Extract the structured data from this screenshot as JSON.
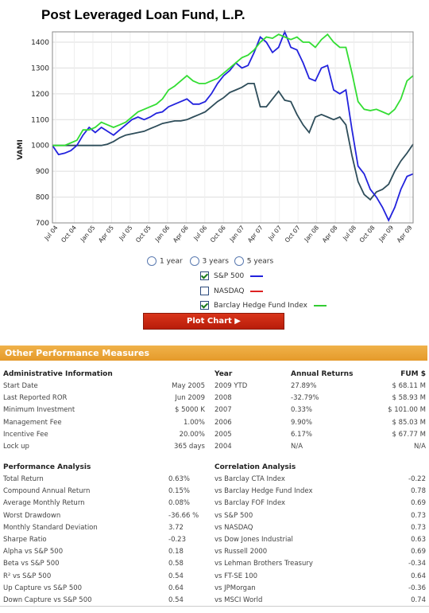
{
  "title": "Post Leveraged Loan Fund, L.P.",
  "chart_data": {
    "type": "line",
    "ylabel": "VAMI",
    "ylim": [
      700,
      1440
    ],
    "yticks": [
      700,
      800,
      900,
      1000,
      1100,
      1200,
      1300,
      1400
    ],
    "x_tick_labels": [
      "Jul 04",
      "Oct 04",
      "Jan 05",
      "Apr 05",
      "Jul 05",
      "Oct 05",
      "Jan 06",
      "Apr 06",
      "Jul 06",
      "Oct 06",
      "Jan 07",
      "Apr 07",
      "Jul 07",
      "Oct 07",
      "Jan 08",
      "Apr 08",
      "Jul 08",
      "Oct 08",
      "Jan 09",
      "Apr 09"
    ],
    "n_points": 60,
    "series": [
      {
        "name": "Fund",
        "color": "#2e4d5a",
        "values": [
          1000,
          1000,
          1000,
          1000,
          1000,
          1000,
          1000,
          1000,
          1000,
          1005,
          1015,
          1030,
          1040,
          1045,
          1050,
          1055,
          1065,
          1075,
          1085,
          1090,
          1095,
          1095,
          1100,
          1110,
          1120,
          1130,
          1150,
          1170,
          1185,
          1205,
          1215,
          1225,
          1240,
          1240,
          1150,
          1150,
          1180,
          1210,
          1175,
          1170,
          1120,
          1080,
          1050,
          1110,
          1120,
          1110,
          1100,
          1110,
          1080,
          960,
          860,
          810,
          790,
          820,
          830,
          850,
          900,
          940,
          970,
          1005
        ]
      },
      {
        "name": "S&P 500",
        "color": "#2222dd",
        "values": [
          1000,
          965,
          970,
          980,
          1000,
          1040,
          1070,
          1050,
          1070,
          1055,
          1040,
          1060,
          1080,
          1100,
          1110,
          1100,
          1110,
          1125,
          1130,
          1150,
          1160,
          1170,
          1180,
          1160,
          1160,
          1170,
          1200,
          1240,
          1270,
          1290,
          1320,
          1300,
          1310,
          1360,
          1420,
          1400,
          1360,
          1380,
          1440,
          1380,
          1370,
          1320,
          1260,
          1250,
          1300,
          1310,
          1215,
          1200,
          1215,
          1060,
          920,
          890,
          830,
          800,
          760,
          710,
          760,
          830,
          880,
          890
        ]
      },
      {
        "name": "Barclay Hedge Fund Index",
        "color": "#33dd33",
        "values": [
          1000,
          1000,
          1000,
          1010,
          1020,
          1060,
          1060,
          1070,
          1090,
          1080,
          1070,
          1080,
          1090,
          1110,
          1130,
          1140,
          1150,
          1160,
          1180,
          1215,
          1230,
          1250,
          1270,
          1250,
          1240,
          1240,
          1250,
          1260,
          1280,
          1300,
          1320,
          1340,
          1350,
          1370,
          1400,
          1420,
          1415,
          1430,
          1420,
          1410,
          1420,
          1400,
          1400,
          1380,
          1410,
          1430,
          1400,
          1380,
          1380,
          1280,
          1170,
          1140,
          1135,
          1140,
          1130,
          1120,
          1140,
          1180,
          1250,
          1270
        ]
      }
    ]
  },
  "period": {
    "opt1": "1 year",
    "opt2": "3 years",
    "opt3": "5 years"
  },
  "legend": [
    {
      "label": "S&P 500",
      "checked": true,
      "color": "#2222dd"
    },
    {
      "label": "NASDAQ",
      "checked": false,
      "color": "#dd2222"
    },
    {
      "label": "Barclay Hedge Fund Index",
      "checked": true,
      "color": "#33cc33"
    }
  ],
  "plot_button": "Plot Chart ▶",
  "perf_header": "Other Performance Measures",
  "admin": {
    "heading": "Administrative Information",
    "rows": [
      {
        "label": "Start Date",
        "value": "May 2005"
      },
      {
        "label": "Last Reported ROR",
        "value": "Jun 2009"
      },
      {
        "label": "Minimum Investment",
        "value": "$ 5000 K"
      },
      {
        "label": "Management Fee",
        "value": "1.00%"
      },
      {
        "label": "Incentive Fee",
        "value": "20.00%"
      },
      {
        "label": "Lock up",
        "value": "365 days"
      }
    ]
  },
  "annual": {
    "col_year": "Year",
    "col_ret": "Annual Returns",
    "col_fum": "FUM $",
    "rows": [
      {
        "year": "2009 YTD",
        "ret": "27.89%",
        "fum": "$ 68.11 M"
      },
      {
        "year": "2008",
        "ret": "-32.79%",
        "fum": "$ 58.93 M"
      },
      {
        "year": "2007",
        "ret": "0.33%",
        "fum": "$ 101.00 M"
      },
      {
        "year": "2006",
        "ret": "9.90%",
        "fum": "$ 85.03 M"
      },
      {
        "year": "2005",
        "ret": "6.17%",
        "fum": "$ 67.77 M"
      },
      {
        "year": "2004",
        "ret": "N/A",
        "fum": "N/A"
      }
    ]
  },
  "perf": {
    "heading": "Performance Analysis",
    "rows": [
      {
        "label": "Total Return",
        "value": "0.63%"
      },
      {
        "label": "Compound Annual Return",
        "value": "0.15%"
      },
      {
        "label": "Average Monthly Return",
        "value": "0.08%"
      },
      {
        "label": "Worst Drawdown",
        "value": "-36.66 %"
      },
      {
        "label": "Monthly Standard Deviation",
        "value": "3.72"
      },
      {
        "label": "Sharpe Ratio",
        "value": "-0.23"
      },
      {
        "label": "Alpha vs S&P 500",
        "value": "0.18"
      },
      {
        "label": "Beta vs S&P 500",
        "value": "0.58"
      },
      {
        "label": "R² vs S&P 500",
        "value": "0.54"
      },
      {
        "label": "Up Capture vs S&P 500",
        "value": "0.64"
      },
      {
        "label": "Down Capture vs S&P 500",
        "value": "0.54"
      }
    ]
  },
  "corr": {
    "heading": "Correlation Analysis",
    "rows": [
      {
        "label": "vs Barclay CTA Index",
        "value": "-0.22"
      },
      {
        "label": "vs Barclay Hedge Fund Index",
        "value": "0.78"
      },
      {
        "label": "vs Barclay FOF Index",
        "value": "0.69"
      },
      {
        "label": "vs S&P 500",
        "value": "0.73"
      },
      {
        "label": "vs NASDAQ",
        "value": "0.73"
      },
      {
        "label": "vs Dow Jones Industrial",
        "value": "0.63"
      },
      {
        "label": "vs Russell 2000",
        "value": "0.69"
      },
      {
        "label": "vs Lehman Brothers Treasury",
        "value": "-0.34"
      },
      {
        "label": "vs FT-SE 100",
        "value": "0.64"
      },
      {
        "label": "vs JPMorgan",
        "value": "-0.36"
      },
      {
        "label": "vs MSCI World",
        "value": "0.74"
      }
    ]
  }
}
